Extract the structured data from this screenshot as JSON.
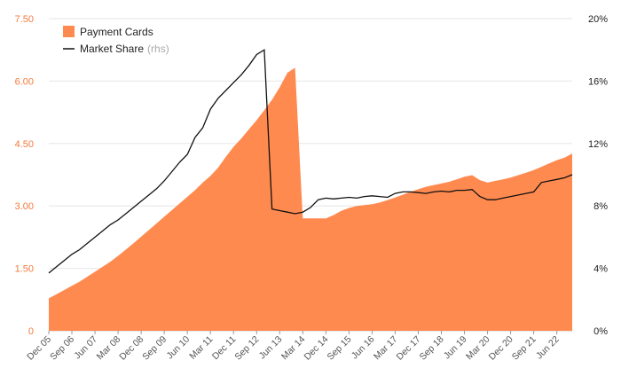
{
  "chart_data": {
    "type": "area",
    "title": "",
    "x_categories": [
      "Dec 05",
      "Sep 06",
      "Jun 07",
      "Mar 08",
      "Dec 08",
      "Sep 09",
      "Jun 10",
      "Mar 11",
      "Dec 11",
      "Sep 12",
      "Jun 13",
      "Mar 14",
      "Dec 14",
      "Sep 15",
      "Jun 16",
      "Mar 17",
      "Dec 17",
      "Sep 18",
      "Jun 19",
      "Mar 20",
      "Dec 20",
      "Sep 21",
      "Jun 22"
    ],
    "x_range": [
      0,
      68
    ],
    "y_left": {
      "range": [
        0,
        7.5
      ],
      "ticks": [
        "0",
        "1.50",
        "3.00",
        "4.50",
        "6.00",
        "7.50"
      ]
    },
    "y_right": {
      "range": [
        0,
        20
      ],
      "ticks": [
        "0%",
        "4%",
        "8%",
        "12%",
        "16%",
        "20%"
      ]
    },
    "grid": true,
    "legend_position": "top-left",
    "colors": {
      "area": "#ff8a50",
      "line": "#111111",
      "left_axis_text": "#f47a3c",
      "grid": "#e6e6e6"
    },
    "legend": {
      "area_label": "Payment Cards",
      "line_label": "Market Share",
      "line_note": "(rhs)"
    },
    "series": [
      {
        "name": "Payment Cards",
        "axis": "left",
        "kind": "area",
        "x": [
          0,
          1,
          2,
          3,
          4,
          5,
          6,
          7,
          8,
          9,
          10,
          11,
          12,
          13,
          14,
          15,
          16,
          17,
          18,
          19,
          20,
          21,
          22,
          23,
          24,
          25,
          26,
          27,
          28,
          29,
          30,
          31,
          32,
          33,
          34,
          35,
          36,
          37,
          38,
          39,
          40,
          41,
          42,
          43,
          44,
          45,
          46,
          47,
          48,
          49,
          50,
          51,
          52,
          53,
          54,
          55,
          56,
          57,
          58,
          59,
          60,
          61,
          62,
          63,
          64,
          65,
          66,
          67,
          68
        ],
        "values": [
          0.78,
          0.88,
          0.98,
          1.08,
          1.18,
          1.3,
          1.42,
          1.54,
          1.66,
          1.8,
          1.95,
          2.1,
          2.26,
          2.42,
          2.58,
          2.74,
          2.9,
          3.06,
          3.22,
          3.38,
          3.56,
          3.72,
          3.92,
          4.18,
          4.42,
          4.62,
          4.84,
          5.06,
          5.3,
          5.55,
          5.85,
          6.2,
          6.32,
          2.7,
          2.7,
          2.7,
          2.7,
          2.78,
          2.88,
          2.95,
          3.0,
          3.02,
          3.04,
          3.08,
          3.14,
          3.2,
          3.27,
          3.34,
          3.4,
          3.46,
          3.5,
          3.54,
          3.58,
          3.64,
          3.7,
          3.74,
          3.62,
          3.56,
          3.6,
          3.64,
          3.68,
          3.74,
          3.8,
          3.86,
          3.94,
          4.02,
          4.1,
          4.16,
          4.26
        ]
      },
      {
        "name": "Market Share",
        "axis": "right",
        "kind": "line",
        "x": [
          0,
          1,
          2,
          3,
          4,
          5,
          6,
          7,
          8,
          9,
          10,
          11,
          12,
          13,
          14,
          15,
          16,
          17,
          18,
          19,
          20,
          21,
          22,
          23,
          24,
          25,
          26,
          27,
          28,
          29,
          30,
          31,
          32,
          33,
          34,
          35,
          36,
          37,
          38,
          39,
          40,
          41,
          42,
          43,
          44,
          45,
          46,
          47,
          48,
          49,
          50,
          51,
          52,
          53,
          54,
          55,
          56,
          57,
          58,
          59,
          60,
          61,
          62,
          63,
          64,
          65,
          66,
          67,
          68
        ],
        "values": [
          3.7,
          4.1,
          4.5,
          4.9,
          5.2,
          5.6,
          6.0,
          6.4,
          6.8,
          7.1,
          7.5,
          7.9,
          8.3,
          8.7,
          9.1,
          9.6,
          10.2,
          10.8,
          11.3,
          12.4,
          13.0,
          14.2,
          14.9,
          15.4,
          15.9,
          16.4,
          17.0,
          17.7,
          18.0,
          7.8,
          7.7,
          7.6,
          7.5,
          7.6,
          7.9,
          8.4,
          8.5,
          8.45,
          8.5,
          8.55,
          8.5,
          8.6,
          8.65,
          8.6,
          8.55,
          8.8,
          8.9,
          8.9,
          8.85,
          8.8,
          8.9,
          8.95,
          8.9,
          9.0,
          9.0,
          9.05,
          8.6,
          8.4,
          8.4,
          8.5,
          8.6,
          8.7,
          8.8,
          8.9,
          9.5,
          9.6,
          9.7,
          9.8,
          10.0
        ]
      }
    ]
  }
}
